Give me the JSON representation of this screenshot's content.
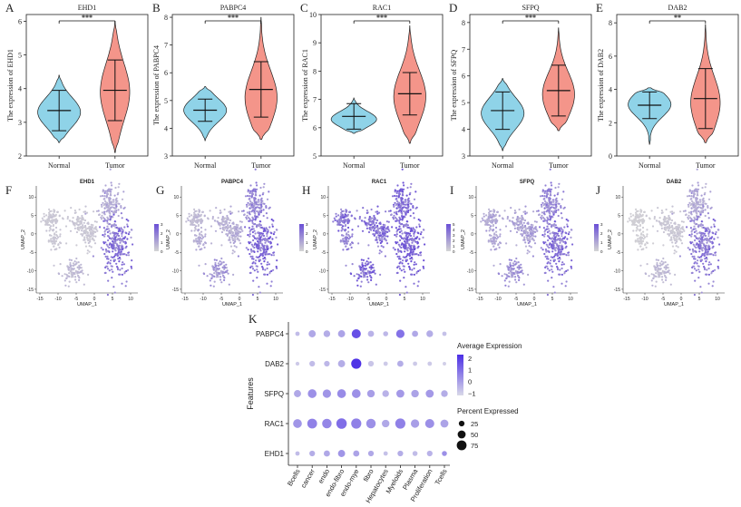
{
  "panel_letters": {
    "violin": [
      "A",
      "B",
      "C",
      "D",
      "E"
    ],
    "umap": [
      "F",
      "G",
      "H",
      "I",
      "J"
    ],
    "dot": "K"
  },
  "colors": {
    "normal_fill": "#8fd3e8",
    "tumor_fill": "#f4958a",
    "umap_low": "#d4d4d4",
    "umap_high": "#6a4fd6",
    "dot_low": "#d9d9e8",
    "dot_high": "#4b2ee6"
  },
  "chart_data": [
    {
      "type": "violin",
      "gene": "EHD1",
      "ylabel": "The expression of EHD1",
      "categories": [
        "Normal",
        "Tumor"
      ],
      "ylim": [
        2,
        6.2
      ],
      "yticks": [
        2,
        3,
        4,
        5,
        6
      ],
      "significance": "***",
      "groups": [
        {
          "name": "Normal",
          "min": 2.4,
          "max": 4.4,
          "mean": 3.35,
          "sd": 0.6,
          "peak": 3.3,
          "width": 0.8
        },
        {
          "name": "Tumor",
          "min": 2.1,
          "max": 6.0,
          "mean": 3.95,
          "sd": 0.9,
          "peak": 3.9,
          "width": 0.55
        }
      ]
    },
    {
      "type": "violin",
      "gene": "PABPC4",
      "ylabel": "The expression of PABPC4",
      "categories": [
        "Normal",
        "Tumor"
      ],
      "ylim": [
        3,
        8.1
      ],
      "yticks": [
        3,
        4,
        5,
        6,
        7,
        8
      ],
      "significance": "***",
      "groups": [
        {
          "name": "Normal",
          "min": 3.55,
          "max": 5.5,
          "mean": 4.65,
          "sd": 0.4,
          "peak": 4.65,
          "width": 0.8
        },
        {
          "name": "Tumor",
          "min": 3.6,
          "max": 8.0,
          "mean": 5.4,
          "sd": 1.0,
          "peak": 5.1,
          "width": 0.6
        }
      ]
    },
    {
      "type": "violin",
      "gene": "RAC1",
      "ylabel": "The expression of RAC1",
      "categories": [
        "Normal",
        "Tumor"
      ],
      "ylim": [
        5,
        10
      ],
      "yticks": [
        5,
        6,
        7,
        8,
        9,
        10
      ],
      "significance": "***",
      "groups": [
        {
          "name": "Normal",
          "min": 5.8,
          "max": 7.05,
          "mean": 6.4,
          "sd": 0.45,
          "peak": 6.3,
          "width": 0.85
        },
        {
          "name": "Tumor",
          "min": 5.45,
          "max": 9.6,
          "mean": 7.2,
          "sd": 0.75,
          "peak": 7.1,
          "width": 0.6
        }
      ]
    },
    {
      "type": "violin",
      "gene": "SFPQ",
      "ylabel": "The expression of SFPQ",
      "categories": [
        "Normal",
        "Tumor"
      ],
      "ylim": [
        3,
        8.3
      ],
      "yticks": [
        3,
        4,
        5,
        6,
        7,
        8
      ],
      "significance": "***",
      "groups": [
        {
          "name": "Normal",
          "min": 3.2,
          "max": 5.9,
          "mean": 4.7,
          "sd": 0.7,
          "peak": 4.6,
          "width": 0.8
        },
        {
          "name": "Tumor",
          "min": 3.95,
          "max": 7.8,
          "mean": 5.45,
          "sd": 0.95,
          "peak": 5.3,
          "width": 0.6
        }
      ]
    },
    {
      "type": "violin",
      "gene": "DAB2",
      "ylabel": "The expression of DAB2",
      "categories": [
        "Normal",
        "Tumor"
      ],
      "ylim": [
        0,
        8.5
      ],
      "yticks": [
        0,
        2,
        4,
        6,
        8
      ],
      "significance": "**",
      "groups": [
        {
          "name": "Normal",
          "min": 0.7,
          "max": 4.1,
          "mean": 3.05,
          "sd": 0.8,
          "peak": 3.1,
          "width": 0.8
        },
        {
          "name": "Tumor",
          "min": 0.8,
          "max": 7.9,
          "mean": 3.45,
          "sd": 1.8,
          "peak": 3.2,
          "width": 0.55
        }
      ]
    },
    {
      "type": "scatter",
      "kind": "umap",
      "title": "EHD1",
      "xlabel": "UMAP_1",
      "ylabel": "UMAP_2",
      "xticks": [
        -15,
        -10,
        -5,
        0,
        5,
        10
      ],
      "yticks": [
        -15,
        -10,
        -5,
        0,
        5,
        10
      ],
      "xlim": [
        -16,
        12
      ],
      "ylim": [
        -16,
        13
      ],
      "legend_ticks": [
        0,
        1,
        2,
        3
      ],
      "expression_by_cluster": {
        "c1": 0.1,
        "c2": 0.1,
        "c3": 0.1,
        "c4": 0.1,
        "c5": 0.2,
        "c6": 0.3,
        "c7": 0.7
      }
    },
    {
      "type": "scatter",
      "kind": "umap",
      "title": "PABPC4",
      "xlabel": "UMAP_1",
      "ylabel": "UMAP_2",
      "xticks": [
        -15,
        -10,
        -5,
        0,
        5,
        10
      ],
      "yticks": [
        -15,
        -10,
        -5,
        0,
        5,
        10
      ],
      "xlim": [
        -16,
        12
      ],
      "ylim": [
        -16,
        13
      ],
      "legend_ticks": [
        0,
        1,
        2,
        3
      ],
      "expression_by_cluster": {
        "c1": 0.2,
        "c2": 0.25,
        "c3": 0.3,
        "c4": 0.3,
        "c5": 0.45,
        "c6": 0.55,
        "c7": 0.75
      }
    },
    {
      "type": "scatter",
      "kind": "umap",
      "title": "RAC1",
      "xlabel": "UMAP_1",
      "ylabel": "UMAP_2",
      "xticks": [
        -15,
        -10,
        -5,
        0,
        5,
        10
      ],
      "yticks": [
        -15,
        -10,
        -5,
        0,
        5,
        10
      ],
      "xlim": [
        -16,
        12
      ],
      "ylim": [
        -16,
        13
      ],
      "legend_ticks": [
        0,
        1,
        2,
        3,
        4,
        5
      ],
      "expression_by_cluster": {
        "c1": 0.75,
        "c2": 0.7,
        "c3": 0.75,
        "c4": 0.6,
        "c5": 0.8,
        "c6": 0.75,
        "c7": 0.85
      }
    },
    {
      "type": "scatter",
      "kind": "umap",
      "title": "SFPQ",
      "xlabel": "UMAP_1",
      "ylabel": "UMAP_2",
      "xticks": [
        -15,
        -10,
        -5,
        0,
        5,
        10
      ],
      "yticks": [
        -15,
        -10,
        -5,
        0,
        5,
        10
      ],
      "xlim": [
        -16,
        12
      ],
      "ylim": [
        -16,
        13
      ],
      "legend_ticks": [
        0,
        1,
        2,
        3
      ],
      "expression_by_cluster": {
        "c1": 0.35,
        "c2": 0.35,
        "c3": 0.4,
        "c4": 0.35,
        "c5": 0.5,
        "c6": 0.55,
        "c7": 0.7
      }
    },
    {
      "type": "scatter",
      "kind": "umap",
      "title": "DAB2",
      "xlabel": "UMAP_1",
      "ylabel": "UMAP_2",
      "xticks": [
        -15,
        -10,
        -5,
        0,
        5,
        10
      ],
      "yticks": [
        -15,
        -10,
        -5,
        0,
        5,
        10
      ],
      "xlim": [
        -16,
        12
      ],
      "ylim": [
        -16,
        13
      ],
      "legend_ticks": [
        0,
        1,
        2,
        3
      ],
      "expression_by_cluster": {
        "c1": 0.05,
        "c2": 0.1,
        "c3": 0.1,
        "c4": 0.05,
        "c5": 0.2,
        "c6": 0.3,
        "c7": 0.65
      }
    },
    {
      "type": "dot",
      "ylabel": "Features",
      "features": [
        "PABPC4",
        "DAB2",
        "SFPQ",
        "RAC1",
        "EHD1"
      ],
      "categories": [
        "Bcells",
        "cancer",
        "endo",
        "endo-fibro",
        "endo-mye",
        "fibro",
        "Hepatocytes",
        "Myeloids",
        "Plasma",
        "Proliferation",
        "Tcells"
      ],
      "avg_expression": [
        [
          -0.6,
          -0.2,
          -0.3,
          -0.1,
          1.6,
          -0.4,
          -0.5,
          0.9,
          -0.2,
          -0.3,
          -0.7
        ],
        [
          -0.9,
          -0.6,
          -0.5,
          -0.3,
          2.2,
          -0.8,
          -0.9,
          -0.3,
          -0.9,
          -0.9,
          -1.0
        ],
        [
          -0.2,
          0.3,
          0.2,
          0.4,
          0.3,
          0.0,
          -0.4,
          0.1,
          -0.1,
          0.1,
          -0.3
        ],
        [
          0.2,
          0.6,
          0.5,
          1.0,
          0.6,
          0.3,
          -0.2,
          0.6,
          0.0,
          0.3,
          -0.1
        ],
        [
          -0.6,
          -0.3,
          -0.2,
          0.2,
          -0.1,
          -0.2,
          -0.7,
          -0.3,
          -0.6,
          -0.4,
          0.3
        ]
      ],
      "pct_expressed": [
        [
          15,
          40,
          35,
          40,
          65,
          30,
          20,
          55,
          30,
          35,
          15
        ],
        [
          12,
          25,
          25,
          40,
          80,
          25,
          15,
          30,
          15,
          15,
          10
        ],
        [
          40,
          60,
          55,
          60,
          60,
          45,
          35,
          50,
          45,
          50,
          35
        ],
        [
          60,
          75,
          70,
          85,
          80,
          70,
          45,
          80,
          55,
          65,
          50
        ],
        [
          15,
          25,
          30,
          40,
          30,
          25,
          15,
          25,
          20,
          25,
          20
        ]
      ],
      "legend": {
        "expr_title": "Average Expression",
        "expr_ticks": [
          "2",
          "1",
          "0",
          "−1"
        ],
        "expr_values": [
          2,
          1,
          0,
          -1
        ],
        "pct_title": "Percent Expressed",
        "pct_values": [
          25,
          50,
          75
        ],
        "pct_labels": [
          "25",
          "50",
          "75"
        ]
      }
    }
  ]
}
